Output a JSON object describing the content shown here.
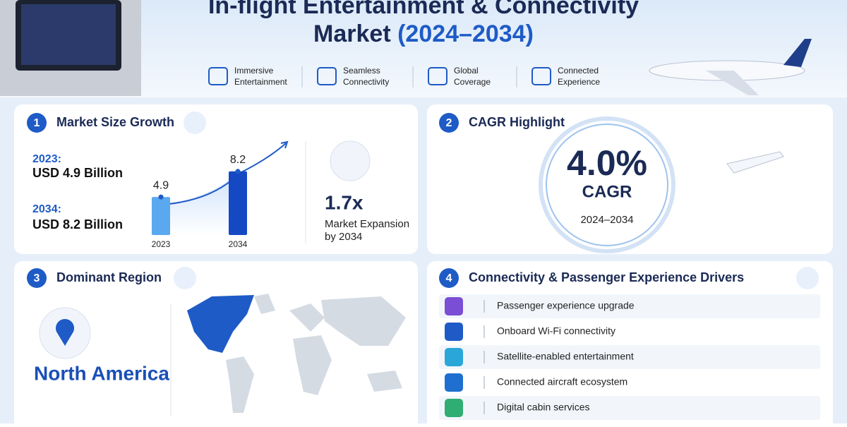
{
  "header": {
    "title_line1": "In-flight Entertainment & Connectivity",
    "title_market": "Market",
    "title_years": "(2024–2034)",
    "features": [
      "Immersive",
      "Entertainment",
      "Seamless",
      "Connectivity",
      "Global",
      "Coverage",
      "Connected",
      "Experience"
    ]
  },
  "market_size": {
    "number": "1",
    "title": "Market Size Growth",
    "start_label": "2023:",
    "start_value": "USD 4.9 Billion",
    "end_label": "2034:",
    "end_value": "USD 8.2 Billion",
    "chart": {
      "categories": [
        "2023",
        "2034"
      ],
      "values": [
        4.9,
        8.2
      ]
    },
    "multiplier": "1.7x",
    "multiplier_note": [
      "Market Expansion",
      "by 2034"
    ]
  },
  "cagr": {
    "number": "2",
    "title": "CAGR Highlight",
    "value": "4.0%",
    "label": "CAGR",
    "period": "2024–2034"
  },
  "region": {
    "number": "3",
    "title": "Dominant Region",
    "name": "North America"
  },
  "drivers": {
    "number": "4",
    "title": "Connectivity & Passenger Experience Drivers",
    "items": [
      "Passenger experience upgrade",
      "Onboard Wi-Fi connectivity",
      "Satellite-enabled entertainment",
      "Connected aircraft ecosystem",
      "Digital cabin services"
    ]
  }
}
